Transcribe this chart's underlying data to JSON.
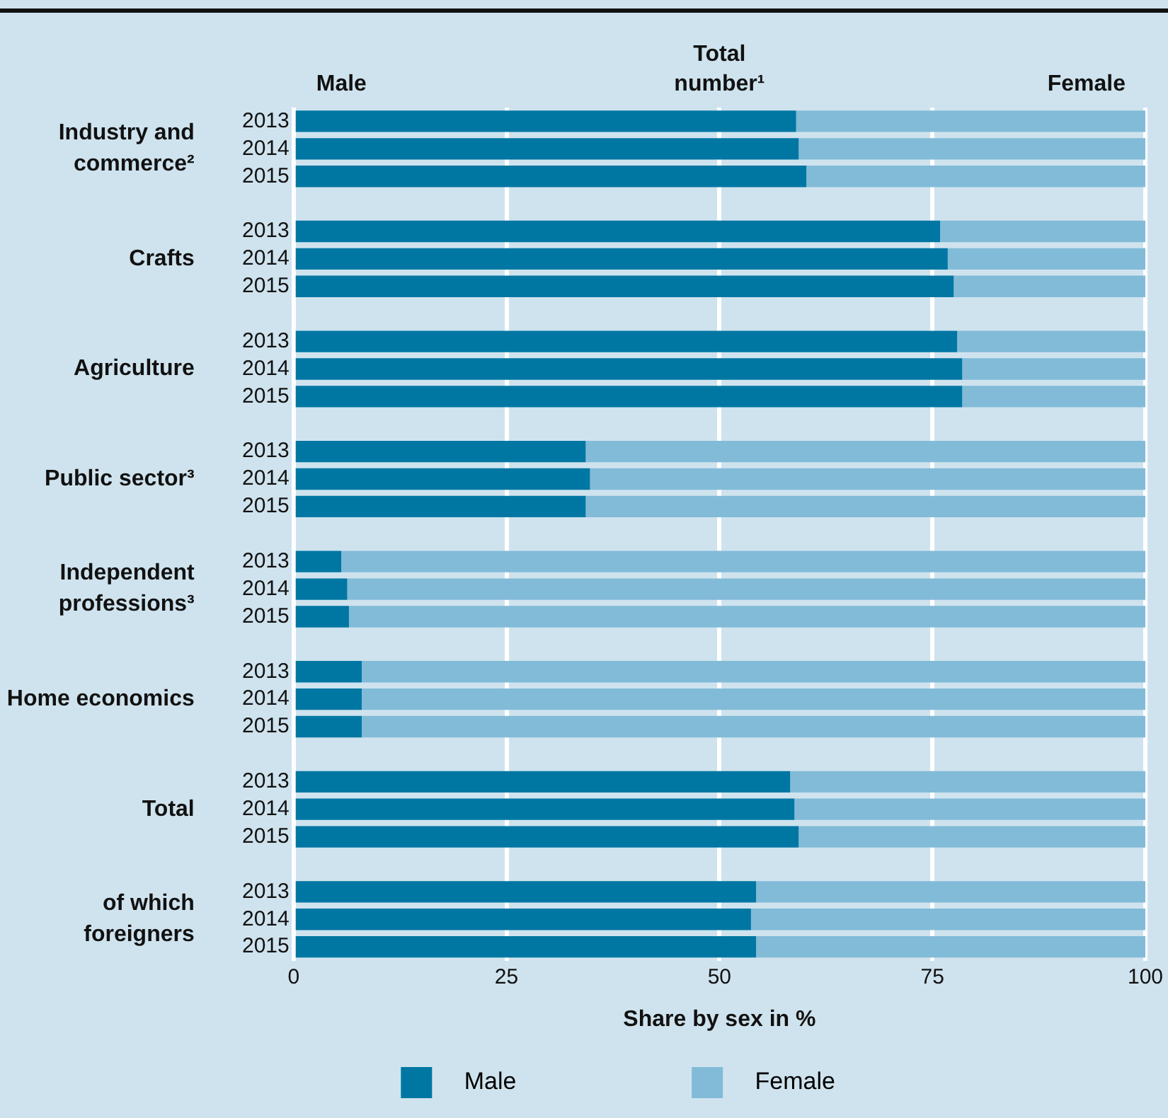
{
  "chart_data": {
    "type": "bar",
    "orientation": "horizontal",
    "stacked": true,
    "categories": [
      "2013",
      "2014",
      "2015",
      null,
      "2013",
      "2014",
      "2015",
      null,
      "2013",
      "2014",
      "2015",
      null,
      "2013",
      "2014",
      "2015",
      null,
      "2013",
      "2014",
      "2015",
      null,
      "2013",
      "2014",
      "2015",
      null,
      "2013",
      "2014",
      "2015",
      null,
      "2013",
      "2014",
      "2015"
    ],
    "series": [
      {
        "name": "Male",
        "color": "#0077a3",
        "values": [
          59.0,
          59.3,
          60.2,
          null,
          75.9,
          76.8,
          77.5,
          null,
          77.9,
          78.5,
          78.5,
          null,
          34.3,
          34.8,
          34.3,
          null,
          5.6,
          6.3,
          6.5,
          null,
          8.0,
          8.0,
          8.0,
          null,
          58.3,
          58.8,
          59.3,
          null,
          54.3,
          53.7,
          54.3
        ]
      },
      {
        "name": "Female",
        "color": "#82bbd8",
        "values": [
          41.0,
          40.7,
          39.8,
          null,
          24.1,
          23.2,
          22.5,
          null,
          22.1,
          21.5,
          21.5,
          null,
          65.7,
          65.2,
          65.7,
          null,
          94.4,
          93.7,
          93.5,
          null,
          92.0,
          92.0,
          92.0,
          null,
          41.7,
          41.2,
          40.7,
          null,
          45.7,
          46.3,
          45.7
        ]
      }
    ],
    "xlim": [
      0,
      100
    ],
    "xticks": [
      0,
      25,
      50,
      75,
      100
    ],
    "xlabel": "Share by sex in %",
    "grid": "x",
    "legend": "bottom",
    "annotations": [
      "Male",
      "Total number¹",
      "Female",
      "Industry and commerce²",
      "Crafts",
      "Agriculture",
      "Public sector³",
      "Independent professions³",
      "Home economics",
      "Total",
      "of which foreigners"
    ]
  }
}
